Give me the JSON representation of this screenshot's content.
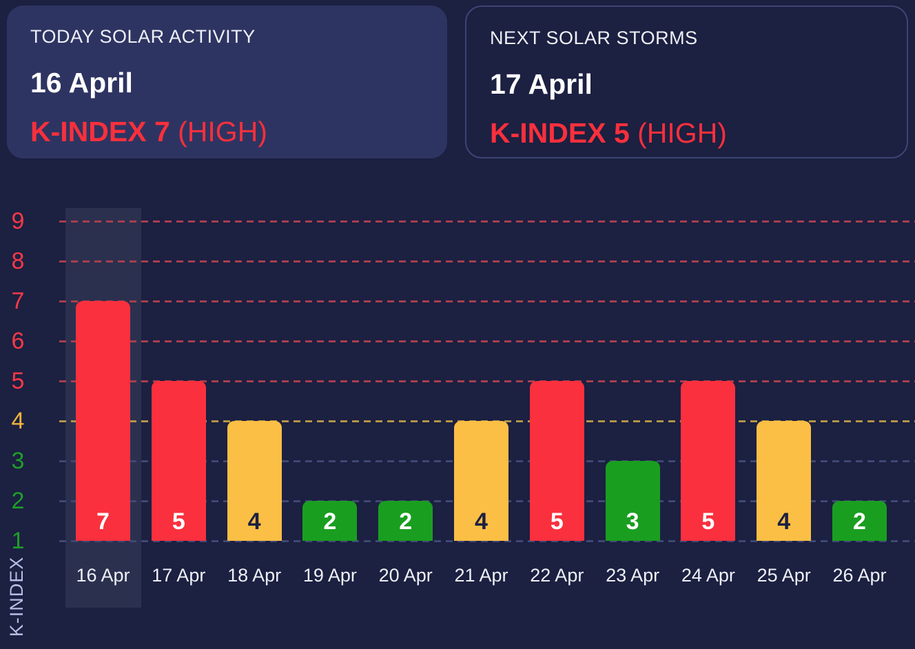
{
  "cards": {
    "today": {
      "title": "TODAY SOLAR ACTIVITY",
      "date": "16 April",
      "kindex_text": "K-INDEX 7",
      "kindex_suffix": " (HIGH)"
    },
    "next": {
      "title": "NEXT SOLAR STORMS",
      "date": "17 April",
      "kindex_text": "K-INDEX 5",
      "kindex_suffix": " (HIGH)"
    }
  },
  "chart_data": {
    "type": "bar",
    "title": "",
    "xlabel": "",
    "ylabel": "K-INDEX",
    "categories": [
      "16 Apr",
      "17 Apr",
      "18 Apr",
      "19 Apr",
      "20 Apr",
      "21 Apr",
      "22 Apr",
      "23 Apr",
      "24 Apr",
      "25 Apr",
      "26 Apr"
    ],
    "values": [
      7,
      5,
      4,
      2,
      2,
      4,
      5,
      3,
      5,
      4,
      2
    ],
    "bar_value_labels": [
      "7",
      "5",
      "4",
      "2",
      "2",
      "4",
      "5",
      "3",
      "5",
      "4",
      "2"
    ],
    "yticks": [
      1,
      2,
      3,
      4,
      5,
      6,
      7,
      8,
      9
    ],
    "ylim": [
      1,
      9
    ],
    "grid": "horizontal-dashed",
    "legend": "none",
    "highlighted_category": "16 Apr",
    "severity_rule": {
      "high_min": 5,
      "moderate": 4,
      "low_max": 3
    },
    "colors": {
      "bar": {
        "high": "#fa303e",
        "moderate": "#fbbf45",
        "low": "#1a9e20"
      },
      "grid": {
        "high": "#a83e4e",
        "moderate": "#b29448",
        "low": "#3e4874"
      },
      "tick": {
        "high": "#f73946",
        "moderate": "#f2b43c",
        "low": "#1e9e28"
      },
      "bar_label": {
        "high": "#ffffff",
        "moderate": "#1c2041",
        "low": "#ffffff"
      },
      "x_label": "#eef0f6",
      "axis_title": "#b6bfe6",
      "highlight_column": "rgba(240,245,255,0.08)"
    }
  },
  "theme": {
    "background": "#1c2041",
    "card_background": "#2e3462",
    "card_border": "#3c4573",
    "text_primary": "#ffffff",
    "text_secondary": "#eef0f5",
    "accent_red": "#f8303c"
  }
}
